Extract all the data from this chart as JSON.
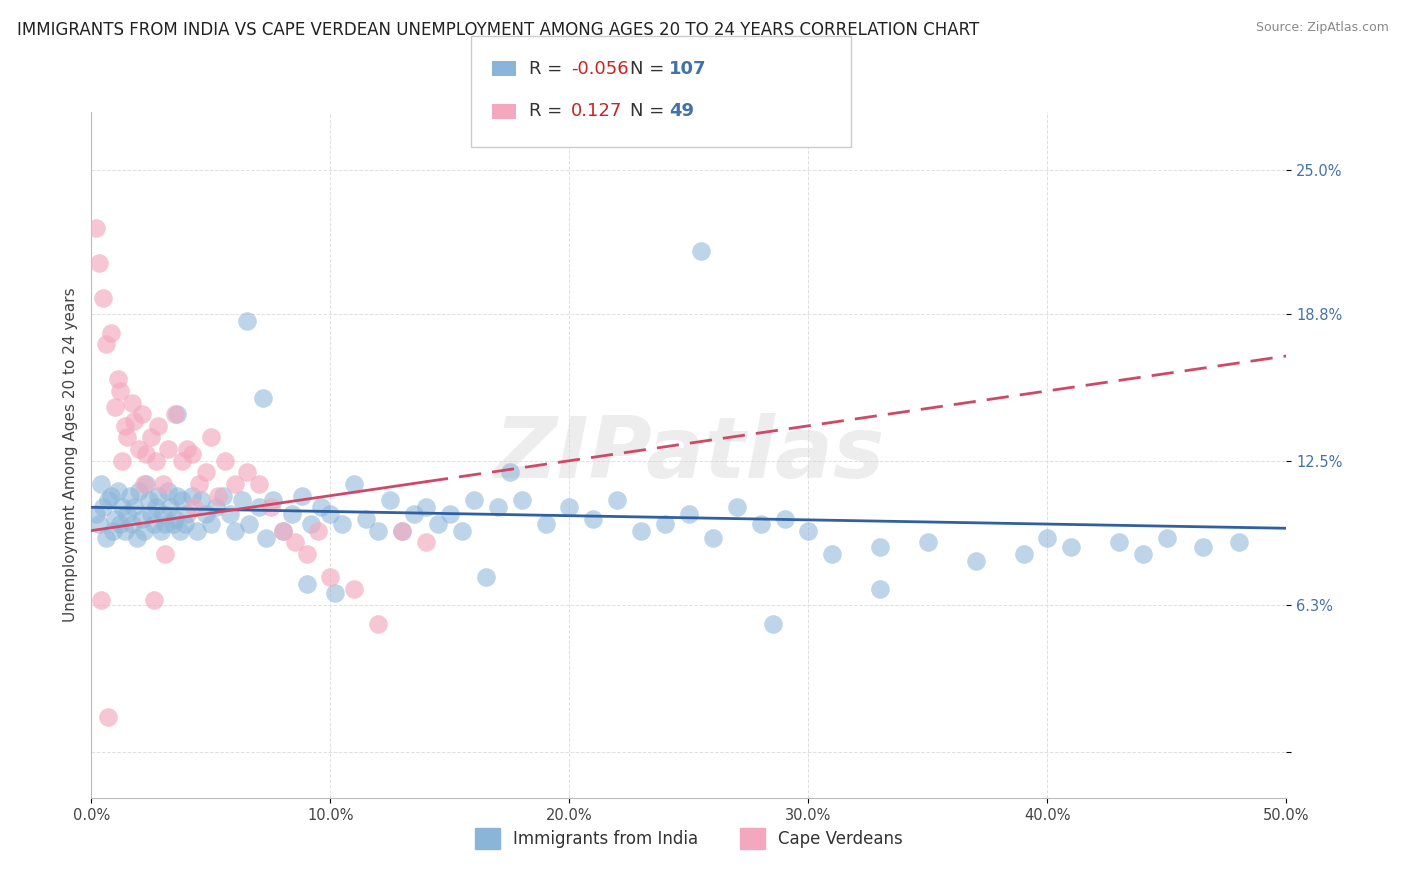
{
  "title": "IMMIGRANTS FROM INDIA VS CAPE VERDEAN UNEMPLOYMENT AMONG AGES 20 TO 24 YEARS CORRELATION CHART",
  "source": "Source: ZipAtlas.com",
  "ylabel": "Unemployment Among Ages 20 to 24 years",
  "xlim": [
    0.0,
    50.0
  ],
  "ylim": [
    -2.0,
    27.5
  ],
  "blue_color": "#8ab4d8",
  "pink_color": "#f4a8be",
  "blue_line_color": "#3060a0",
  "pink_line_color": "#d04868",
  "blue_R": -0.056,
  "pink_R": 0.127,
  "blue_N": 107,
  "pink_N": 49,
  "grid_color": "#e0e0e0",
  "background_color": "#ffffff",
  "title_fontsize": 12,
  "source_fontsize": 9,
  "axis_label_fontsize": 11,
  "tick_fontsize": 10.5,
  "legend_fontsize": 13,
  "ytick_vals": [
    0.0,
    6.3,
    12.5,
    18.8,
    25.0
  ],
  "ytick_labels": [
    "",
    "6.3%",
    "12.5%",
    "18.8%",
    "25.0%"
  ],
  "xtick_vals": [
    0,
    10,
    20,
    30,
    40,
    50
  ],
  "xtick_labels": [
    "0.0%",
    "10.0%",
    "20.0%",
    "30.0%",
    "40.0%",
    "50.0%"
  ],
  "blue_scatter_x": [
    0.2,
    0.3,
    0.4,
    0.5,
    0.6,
    0.7,
    0.8,
    0.9,
    1.0,
    1.1,
    1.2,
    1.3,
    1.4,
    1.5,
    1.6,
    1.7,
    1.8,
    1.9,
    2.0,
    2.1,
    2.2,
    2.3,
    2.4,
    2.5,
    2.6,
    2.7,
    2.8,
    2.9,
    3.0,
    3.1,
    3.2,
    3.3,
    3.4,
    3.5,
    3.6,
    3.7,
    3.8,
    3.9,
    4.0,
    4.2,
    4.4,
    4.6,
    4.8,
    5.0,
    5.2,
    5.5,
    5.8,
    6.0,
    6.3,
    6.6,
    7.0,
    7.3,
    7.6,
    8.0,
    8.4,
    8.8,
    9.2,
    9.6,
    10.0,
    10.5,
    11.0,
    11.5,
    12.0,
    12.5,
    13.0,
    13.5,
    14.0,
    14.5,
    15.0,
    15.5,
    16.0,
    17.0,
    18.0,
    19.0,
    20.0,
    21.0,
    22.0,
    23.0,
    24.0,
    25.0,
    26.0,
    27.0,
    28.0,
    29.0,
    30.0,
    31.0,
    33.0,
    35.0,
    37.0,
    39.0,
    40.0,
    41.0,
    43.0,
    44.0,
    45.0,
    46.5,
    48.0,
    25.5,
    10.2,
    9.0,
    16.5,
    3.6,
    7.2,
    33.0,
    28.5,
    6.5,
    17.5
  ],
  "blue_scatter_y": [
    10.2,
    9.8,
    11.5,
    10.5,
    9.2,
    10.8,
    11.0,
    9.5,
    10.0,
    11.2,
    9.8,
    10.5,
    9.5,
    10.2,
    11.0,
    9.8,
    10.5,
    9.2,
    11.2,
    10.0,
    9.5,
    11.5,
    10.8,
    10.2,
    9.8,
    10.5,
    11.0,
    9.5,
    10.2,
    9.8,
    11.2,
    10.5,
    9.8,
    10.0,
    11.0,
    9.5,
    10.8,
    9.8,
    10.2,
    11.0,
    9.5,
    10.8,
    10.2,
    9.8,
    10.5,
    11.0,
    10.2,
    9.5,
    10.8,
    9.8,
    10.5,
    9.2,
    10.8,
    9.5,
    10.2,
    11.0,
    9.8,
    10.5,
    10.2,
    9.8,
    11.5,
    10.0,
    9.5,
    10.8,
    9.5,
    10.2,
    10.5,
    9.8,
    10.2,
    9.5,
    10.8,
    10.5,
    10.8,
    9.8,
    10.5,
    10.0,
    10.8,
    9.5,
    9.8,
    10.2,
    9.2,
    10.5,
    9.8,
    10.0,
    9.5,
    8.5,
    8.8,
    9.0,
    8.2,
    8.5,
    9.2,
    8.8,
    9.0,
    8.5,
    9.2,
    8.8,
    9.0,
    21.5,
    6.8,
    7.2,
    7.5,
    14.5,
    15.2,
    7.0,
    5.5,
    18.5,
    12.0
  ],
  "pink_scatter_x": [
    0.2,
    0.3,
    0.5,
    0.6,
    0.8,
    1.0,
    1.1,
    1.2,
    1.4,
    1.5,
    1.7,
    1.8,
    2.0,
    2.1,
    2.3,
    2.5,
    2.7,
    2.8,
    3.0,
    3.2,
    3.5,
    3.8,
    4.0,
    4.2,
    4.5,
    4.8,
    5.0,
    5.3,
    5.6,
    6.0,
    6.5,
    7.0,
    7.5,
    8.0,
    8.5,
    9.0,
    9.5,
    10.0,
    11.0,
    12.0,
    13.0,
    14.0,
    0.4,
    1.3,
    2.2,
    3.1,
    0.7,
    2.6,
    4.3
  ],
  "pink_scatter_y": [
    22.5,
    21.0,
    19.5,
    17.5,
    18.0,
    14.8,
    16.0,
    15.5,
    14.0,
    13.5,
    15.0,
    14.2,
    13.0,
    14.5,
    12.8,
    13.5,
    12.5,
    14.0,
    11.5,
    13.0,
    14.5,
    12.5,
    13.0,
    12.8,
    11.5,
    12.0,
    13.5,
    11.0,
    12.5,
    11.5,
    12.0,
    11.5,
    10.5,
    9.5,
    9.0,
    8.5,
    9.5,
    7.5,
    7.0,
    5.5,
    9.5,
    9.0,
    6.5,
    12.5,
    11.5,
    8.5,
    1.5,
    6.5,
    10.5
  ]
}
